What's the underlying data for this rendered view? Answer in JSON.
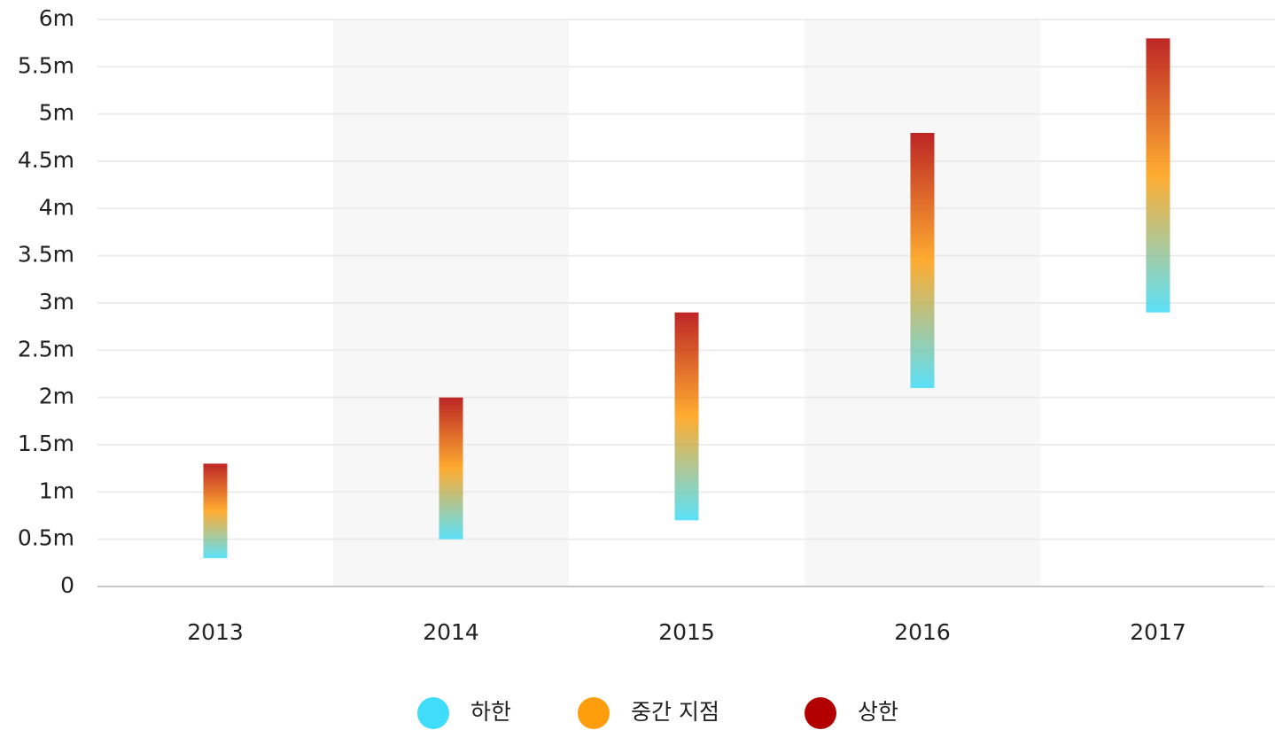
{
  "chart_data": {
    "type": "range-bar",
    "categories": [
      "2013",
      "2014",
      "2015",
      "2016",
      "2017"
    ],
    "series": [
      {
        "name": "하한",
        "color": "#40dcf9",
        "values": [
          0.3,
          0.5,
          0.7,
          2.1,
          2.9
        ]
      },
      {
        "name": "중간 지점",
        "color": "#ff9e0d",
        "values": [
          0.8,
          1.25,
          1.8,
          3.45,
          4.35
        ]
      },
      {
        "name": "상한",
        "color": "#b20000",
        "values": [
          1.3,
          2.0,
          2.9,
          4.8,
          5.8
        ]
      }
    ],
    "ylim": [
      0,
      6
    ],
    "yticks": [
      0,
      {
        "value": 0.5,
        "label": "0.5m"
      },
      {
        "value": 1,
        "label": "1m"
      },
      {
        "value": 1.5,
        "label": "1.5m"
      },
      {
        "value": 2,
        "label": "2m"
      },
      {
        "value": 2.5,
        "label": "2.5m"
      },
      {
        "value": 3,
        "label": "3m"
      },
      {
        "value": 3.5,
        "label": "3.5m"
      },
      {
        "value": 4,
        "label": "4m"
      },
      {
        "value": 4.5,
        "label": "4.5m"
      },
      {
        "value": 5,
        "label": "5m"
      },
      {
        "value": 5.5,
        "label": "5.5m"
      },
      {
        "value": 6,
        "label": "6m"
      }
    ],
    "grid": true,
    "legend": "bottom"
  }
}
